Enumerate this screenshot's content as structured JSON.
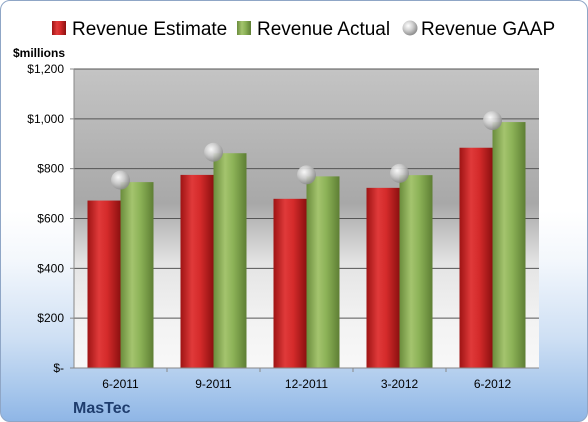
{
  "chart_data": {
    "type": "bar",
    "categories": [
      "6-2011",
      "9-2011",
      "12-2011",
      "3-2012",
      "6-2012"
    ],
    "series": [
      {
        "name": "Revenue Estimate",
        "kind": "bar",
        "color": "#d42a2a",
        "values": [
          672,
          775,
          679,
          723,
          884
        ]
      },
      {
        "name": "Revenue Actual",
        "kind": "bar",
        "color": "#8cb257",
        "values": [
          746,
          862,
          769,
          774,
          987
        ]
      },
      {
        "name": "Revenue GAAP",
        "kind": "marker",
        "color": "#bdbdbd",
        "values": [
          754,
          866,
          775,
          781,
          993
        ]
      }
    ],
    "y_ticks": [
      {
        "value": 0,
        "label": "$-"
      },
      {
        "value": 200,
        "label": "$200"
      },
      {
        "value": 400,
        "label": "$400"
      },
      {
        "value": 600,
        "label": "$600"
      },
      {
        "value": 800,
        "label": "$800"
      },
      {
        "value": 1000,
        "label": "$1,000"
      },
      {
        "value": 1200,
        "label": "$1,200"
      }
    ],
    "ylim": [
      0,
      1200
    ],
    "ylabel": "$millions",
    "title": "",
    "grid": true,
    "legend_position": "top"
  },
  "company": "MasTec"
}
